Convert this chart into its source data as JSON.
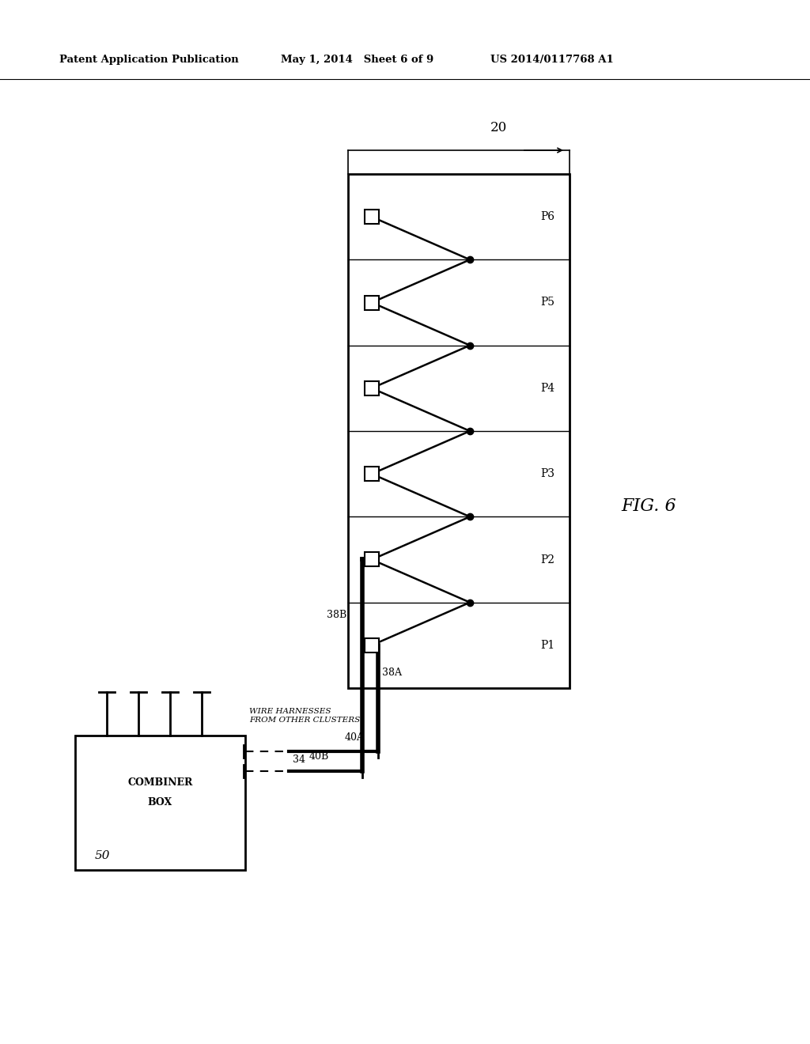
{
  "bg_color": "#ffffff",
  "header_left": "Patent Application Publication",
  "header_mid": "May 1, 2014   Sheet 6 of 9",
  "header_right": "US 2014/0117768 A1",
  "fig_label": "FIG. 6",
  "combiner_box_label1": "COMBINER",
  "combiner_box_label2": "BOX",
  "combiner_box_num": "50",
  "cluster_num": "20",
  "panel_labels": [
    "P1",
    "P2",
    "P3",
    "P4",
    "P5",
    "P6"
  ],
  "label_38A": "38A",
  "label_38B": "38B",
  "label_40A": "40A",
  "label_40B": "40B",
  "label_34": "34",
  "harness_line1": "WIRE HARNESSES",
  "harness_line2": "FROM OTHER CLUSTERS"
}
